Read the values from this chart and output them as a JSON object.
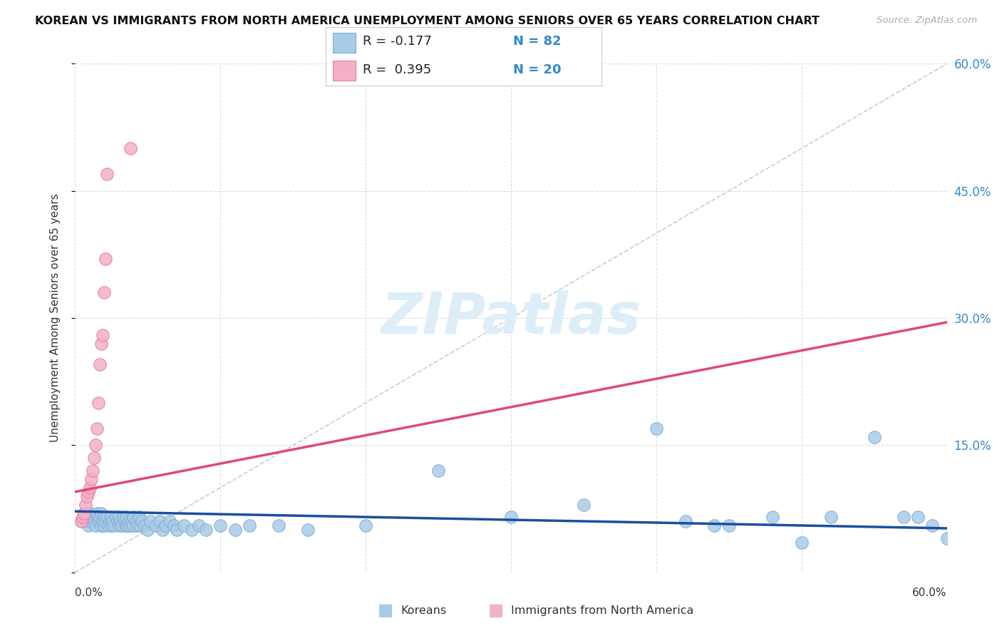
{
  "title": "KOREAN VS IMMIGRANTS FROM NORTH AMERICA UNEMPLOYMENT AMONG SENIORS OVER 65 YEARS CORRELATION CHART",
  "source": "Source: ZipAtlas.com",
  "ylabel": "Unemployment Among Seniors over 65 years",
  "xlim": [
    0,
    0.6
  ],
  "ylim": [
    0,
    0.6
  ],
  "watermark": "ZIPatlas",
  "korean_color": "#a8cce8",
  "korean_edge": "#80aad0",
  "na_color": "#f4b0c8",
  "na_edge": "#e080a0",
  "korean_line_color": "#1a4fa0",
  "na_line_color": "#e04878",
  "ref_line_color": "#cccccc",
  "right_tick_color": "#3388cc",
  "watermark_color": "#ddeef8",
  "grid_color": "#dddddd",
  "korean_R": -0.177,
  "korean_N": 82,
  "na_R": 0.395,
  "na_N": 20,
  "na_line_x0": 0.0,
  "na_line_y0": 0.095,
  "na_line_x1": 0.6,
  "na_line_y1": 0.295,
  "korean_line_x0": 0.0,
  "korean_line_y0": 0.072,
  "korean_line_x1": 0.6,
  "korean_line_y1": 0.052,
  "korean_scatter_x": [
    0.005,
    0.007,
    0.008,
    0.009,
    0.01,
    0.01,
    0.012,
    0.013,
    0.014,
    0.015,
    0.015,
    0.016,
    0.017,
    0.018,
    0.018,
    0.019,
    0.02,
    0.02,
    0.021,
    0.022,
    0.023,
    0.024,
    0.025,
    0.025,
    0.026,
    0.027,
    0.028,
    0.029,
    0.03,
    0.03,
    0.031,
    0.032,
    0.033,
    0.034,
    0.035,
    0.035,
    0.036,
    0.037,
    0.038,
    0.039,
    0.04,
    0.04,
    0.042,
    0.043,
    0.044,
    0.045,
    0.046,
    0.048,
    0.05,
    0.052,
    0.055,
    0.058,
    0.06,
    0.062,
    0.065,
    0.068,
    0.07,
    0.075,
    0.08,
    0.085,
    0.09,
    0.1,
    0.11,
    0.12,
    0.14,
    0.16,
    0.2,
    0.25,
    0.3,
    0.35,
    0.4,
    0.42,
    0.44,
    0.45,
    0.48,
    0.5,
    0.52,
    0.55,
    0.57,
    0.58,
    0.59,
    0.6
  ],
  "korean_scatter_y": [
    0.06,
    0.065,
    0.07,
    0.055,
    0.06,
    0.07,
    0.065,
    0.06,
    0.055,
    0.065,
    0.07,
    0.06,
    0.065,
    0.055,
    0.07,
    0.06,
    0.055,
    0.065,
    0.06,
    0.065,
    0.055,
    0.06,
    0.055,
    0.065,
    0.06,
    0.055,
    0.065,
    0.06,
    0.055,
    0.065,
    0.06,
    0.055,
    0.065,
    0.06,
    0.055,
    0.065,
    0.055,
    0.06,
    0.055,
    0.06,
    0.055,
    0.065,
    0.06,
    0.055,
    0.065,
    0.055,
    0.06,
    0.055,
    0.05,
    0.06,
    0.055,
    0.06,
    0.05,
    0.055,
    0.06,
    0.055,
    0.05,
    0.055,
    0.05,
    0.055,
    0.05,
    0.055,
    0.05,
    0.055,
    0.055,
    0.05,
    0.055,
    0.12,
    0.065,
    0.08,
    0.17,
    0.06,
    0.055,
    0.055,
    0.065,
    0.035,
    0.065,
    0.16,
    0.065,
    0.065,
    0.055,
    0.04
  ],
  "na_scatter_x": [
    0.004,
    0.005,
    0.006,
    0.007,
    0.008,
    0.009,
    0.01,
    0.011,
    0.012,
    0.013,
    0.014,
    0.015,
    0.016,
    0.017,
    0.018,
    0.019,
    0.02,
    0.021,
    0.022,
    0.038
  ],
  "na_scatter_y": [
    0.06,
    0.065,
    0.07,
    0.08,
    0.09,
    0.095,
    0.1,
    0.11,
    0.12,
    0.135,
    0.15,
    0.17,
    0.2,
    0.245,
    0.27,
    0.28,
    0.33,
    0.37,
    0.47,
    0.5
  ]
}
